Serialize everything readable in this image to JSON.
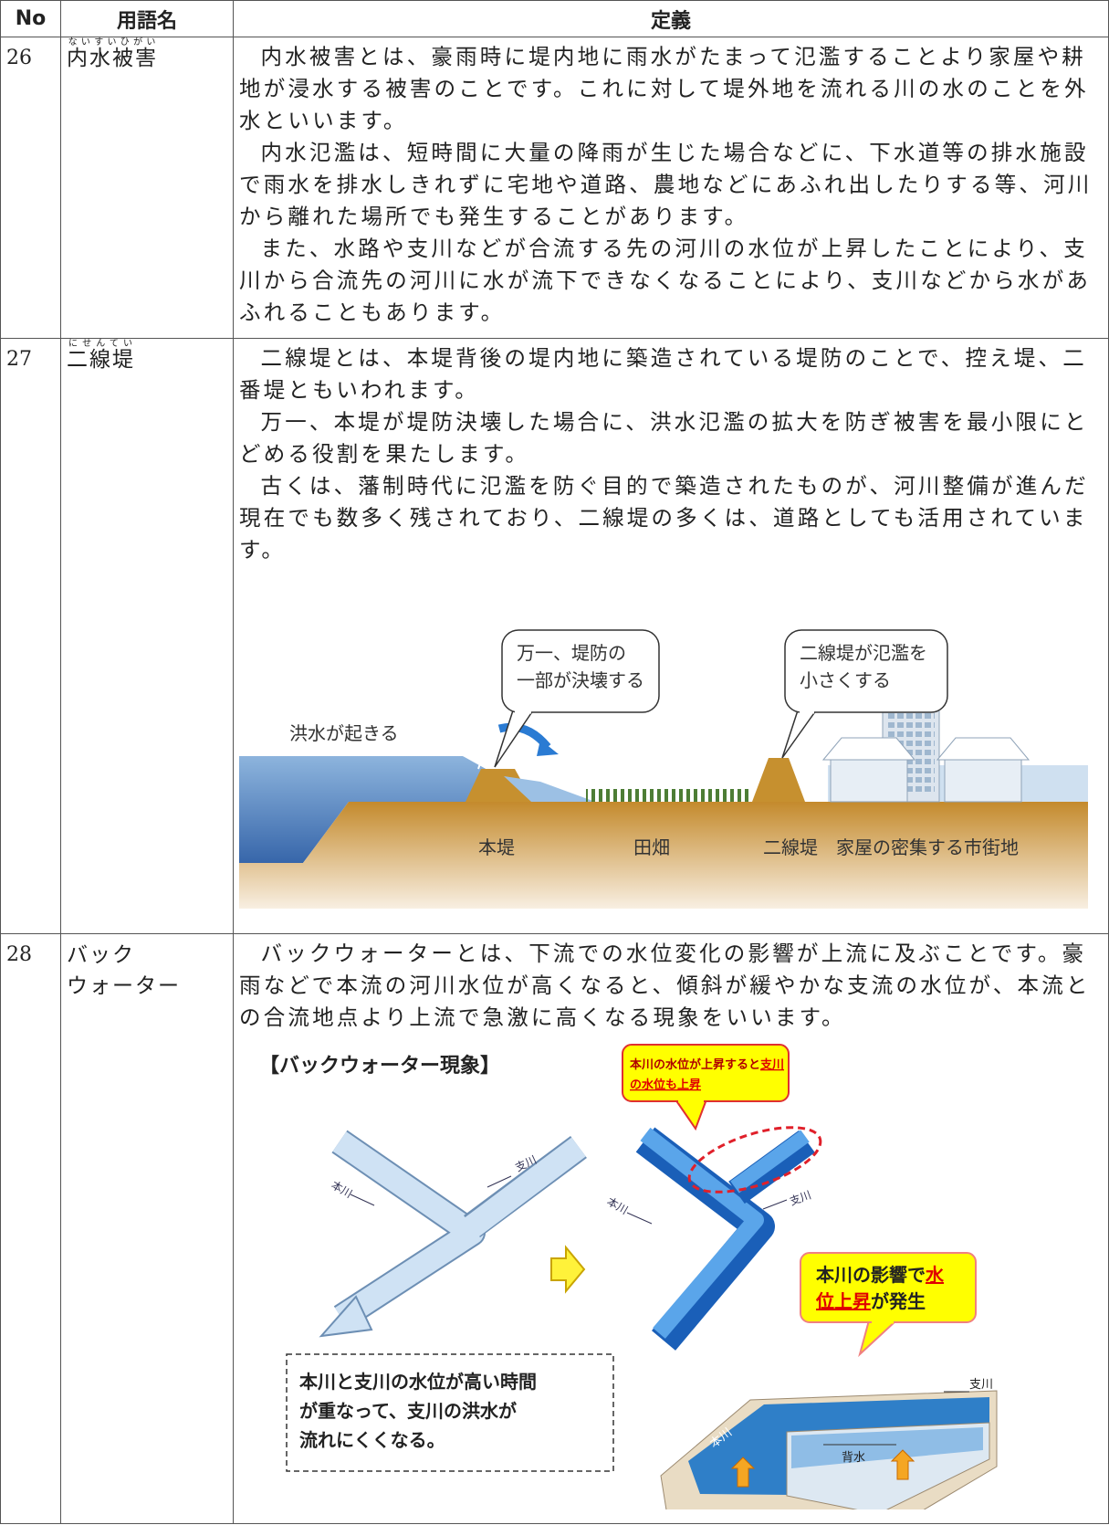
{
  "header": {
    "no": "No",
    "term": "用語名",
    "definition": "定義"
  },
  "rows": [
    {
      "no": "26",
      "term": "内水被害",
      "reading": "ないすいひがい",
      "paragraphs": [
        "内水被害とは、豪雨時に堤内地に雨水がたまって氾濫することより家屋や耕地が浸水する被害のことです。これに対して堤外地を流れる川の水のことを外水といいます。",
        "内水氾濫は、短時間に大量の降雨が生じた場合などに、下水道等の排水施設で雨水を排水しきれずに宅地や道路、農地などにあふれ出したりする等、河川から離れた場所でも発生することがあります。",
        "また、水路や支川などが合流する先の河川の水位が上昇したことにより、支川から合流先の河川に水が流下できなくなることにより、支川などから水があふれることもあります。"
      ]
    },
    {
      "no": "27",
      "term": "二線堤",
      "reading": "にせんてい",
      "paragraphs": [
        "二線堤とは、本堤背後の堤内地に築造されている堤防のことで、控え堤、二番堤ともいわれます。",
        "万一、本堤が堤防決壊した場合に、洪水氾濫の拡大を防ぎ被害を最小限にとどめる役割を果たします。",
        "古くは、藩制時代に氾濫を防ぐ目的で築造されたものが、河川整備が進んだ現在でも数多く残されており、二線堤の多くは、道路としても活用されています。"
      ],
      "figure": {
        "callouts": [
          [
            "万一、堤防の",
            "一部が決壊する"
          ],
          [
            "二線堤が氾濫を",
            "小さくする"
          ]
        ],
        "flood": "洪水が起きる",
        "labels": [
          "本堤",
          "田畑",
          "二線堤",
          "家屋の密集する市街地"
        ]
      }
    },
    {
      "no": "28",
      "term": [
        "バック",
        "ウォーター"
      ],
      "paragraphs": [
        "バックウォーターとは、下流での水位変化の影響が上流に及ぶことです。豪雨などで本流の河川水位が高くなると、傾斜が緩やかな支流の水位が、本流との合流地点より上流で急激に高くなる現象をいいます。"
      ],
      "figure": {
        "title": "【バックウォーター現象】",
        "callout_top": [
          [
            "本川の水位が上昇すると",
            "支川"
          ],
          [
            "の水位も上昇"
          ]
        ],
        "callout_bottom": [
          [
            "本川の影響で",
            "水"
          ],
          [
            "位上昇",
            "が発生"
          ]
        ],
        "river_labels_before": [
          "本川",
          "支川"
        ],
        "river_labels_after": [
          "本川",
          "支川"
        ],
        "box": [
          "本川と支川の水位が高い時間",
          "が重なって、支川の洪水が",
          "流れにくくなる。"
        ],
        "channel_labels": [
          "支川",
          "本川",
          "背水"
        ]
      }
    }
  ]
}
